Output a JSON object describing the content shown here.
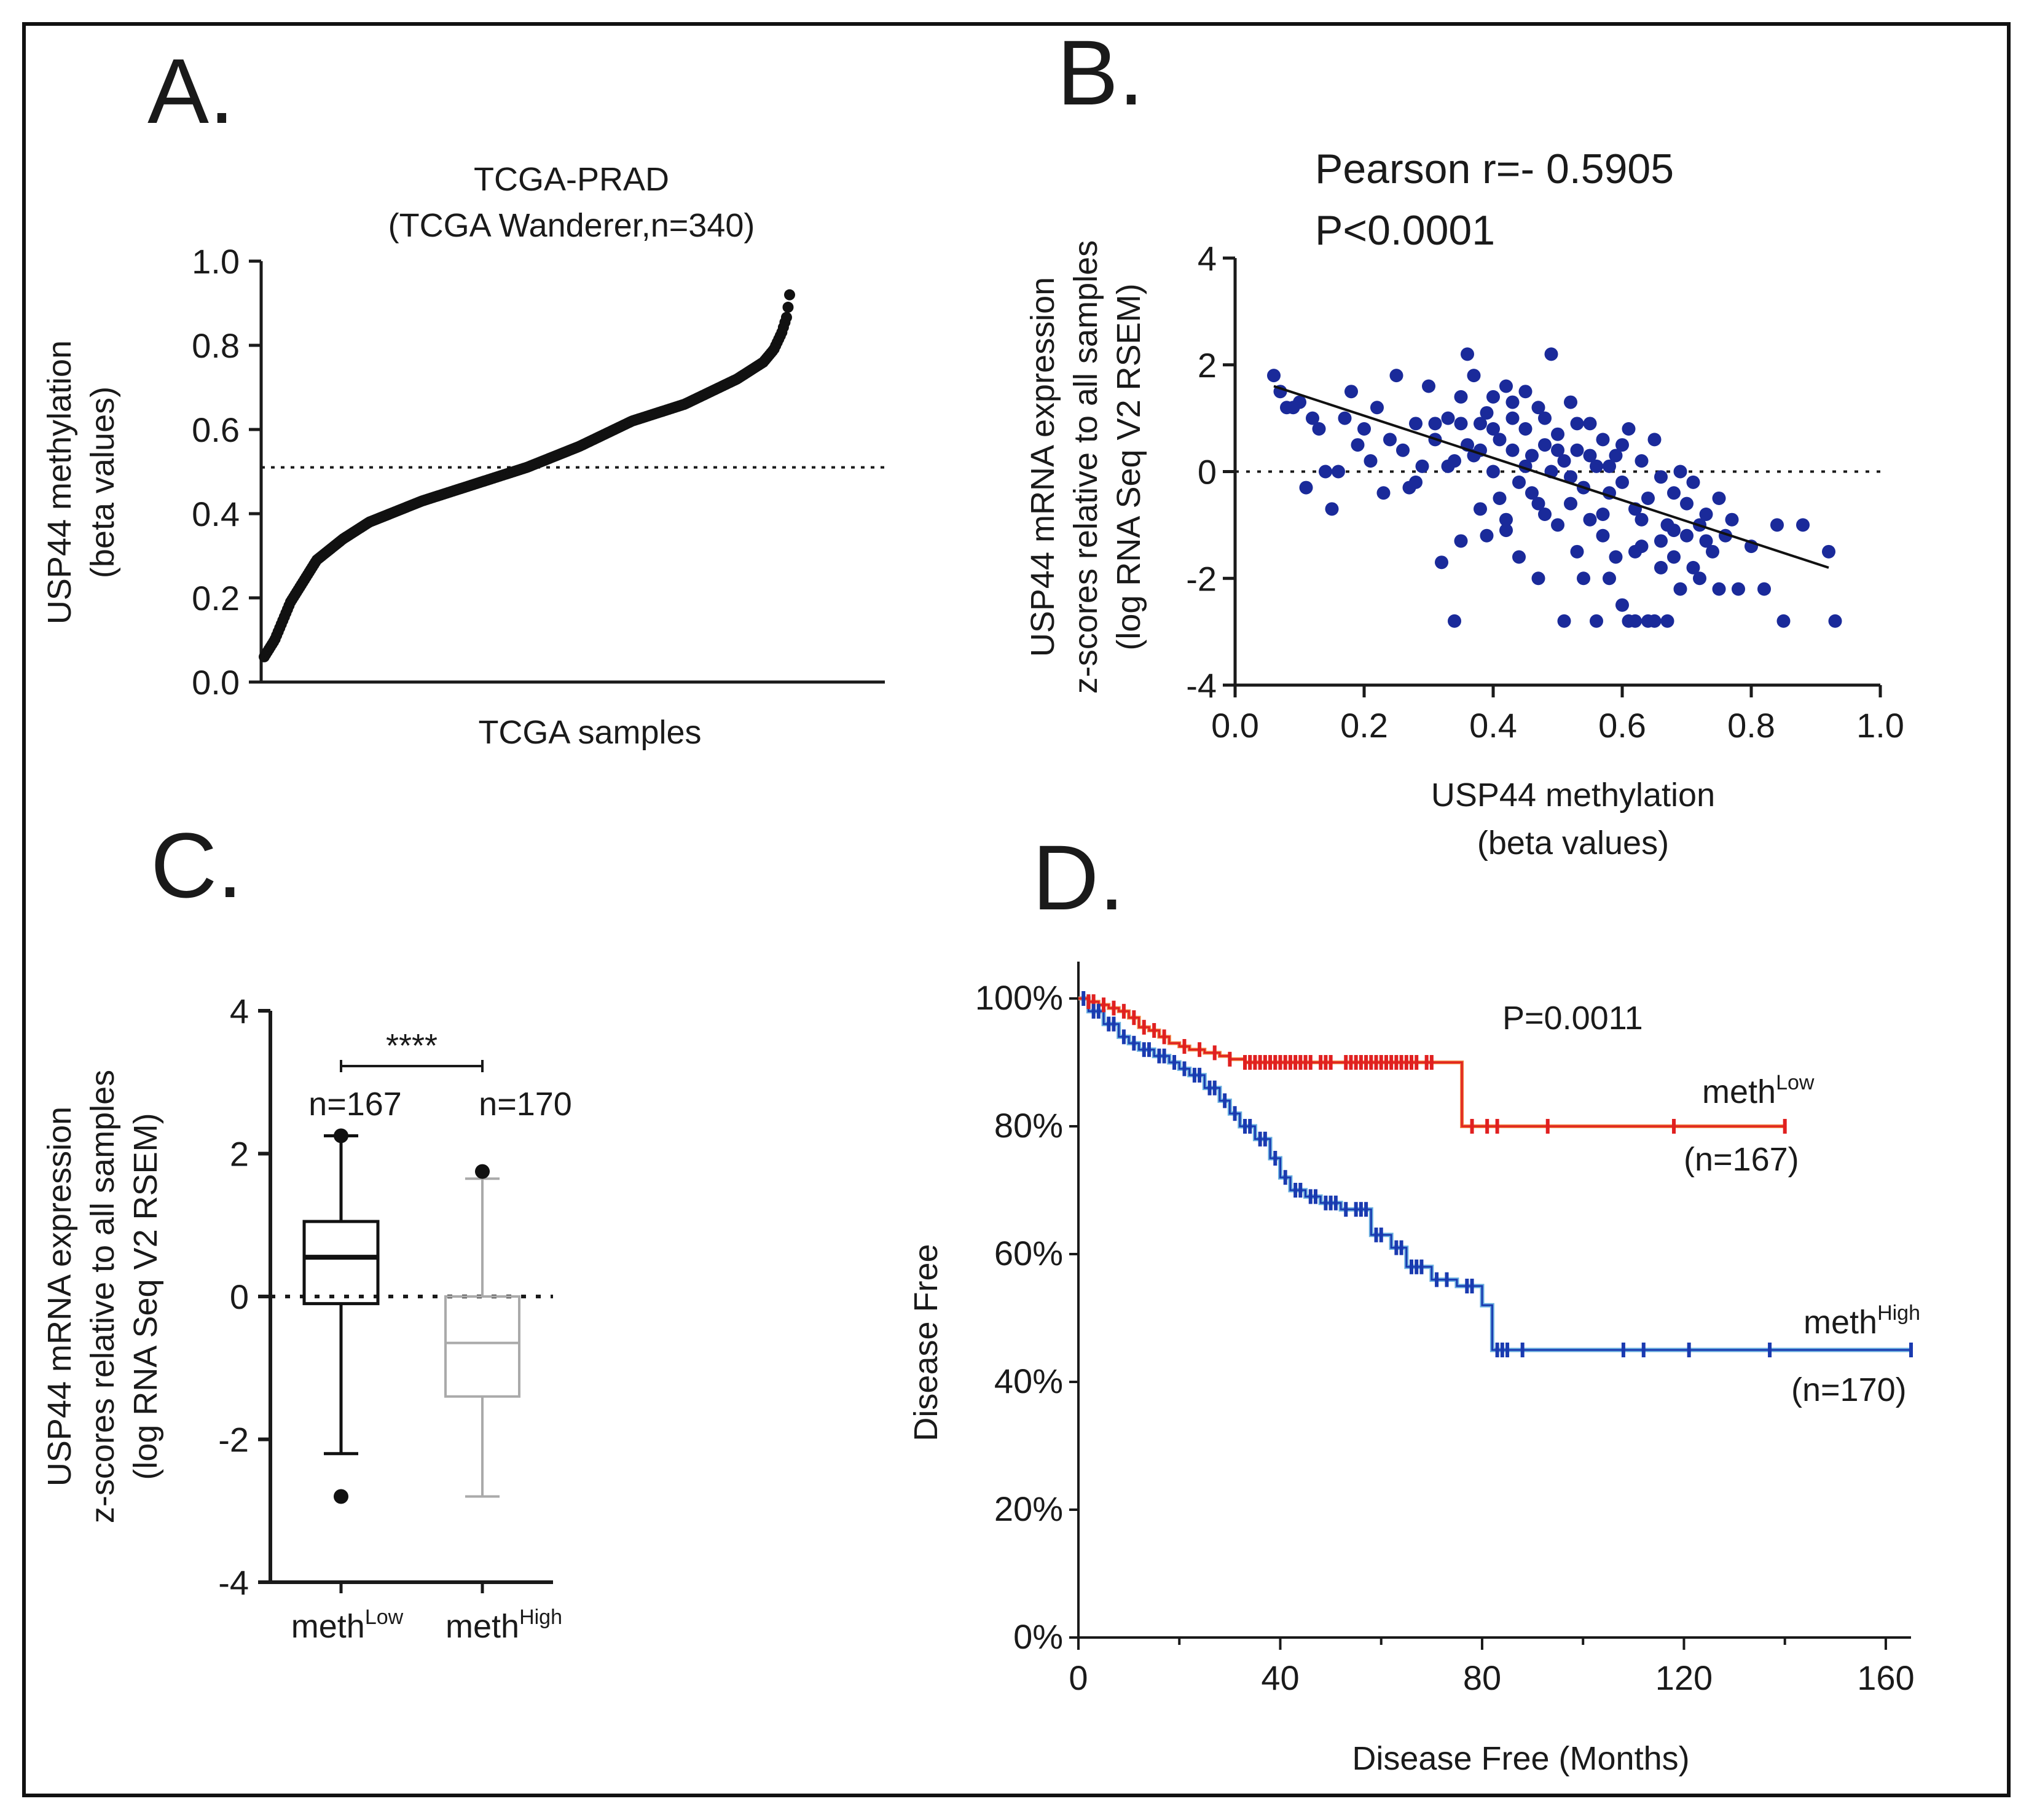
{
  "panel_letters": [
    "A.",
    "B.",
    "C.",
    "D."
  ],
  "colors": {
    "axis": "#1a1a1a",
    "scatter": "#1a2a9a",
    "km_low": "#e02020",
    "km_high": "#1a3ab0",
    "km_high_light": "#6ab0e0",
    "box_high": "#aaaaaa"
  },
  "chart_data": [
    {
      "type": "line",
      "panel": "A",
      "title": "TCGA-PRAD",
      "subtitle": "(TCGA Wanderer,n=340)",
      "xlabel": "TCGA samples",
      "ylabel": "USP44 methylation",
      "ylabel2": "(beta values)",
      "ylim": [
        0,
        1
      ],
      "yticks": [
        "0.0",
        "0.2",
        "0.4",
        "0.6",
        "0.8",
        "1.0"
      ],
      "reference_line": 0.51,
      "n_samples": 340,
      "curve_fraction": [
        0,
        0.02,
        0.05,
        0.1,
        0.15,
        0.2,
        0.3,
        0.4,
        0.5,
        0.6,
        0.7,
        0.8,
        0.9,
        0.95,
        0.97,
        0.985,
        0.995,
        1.0
      ],
      "curve_values": [
        0.06,
        0.1,
        0.19,
        0.29,
        0.34,
        0.38,
        0.43,
        0.47,
        0.51,
        0.56,
        0.62,
        0.66,
        0.72,
        0.76,
        0.79,
        0.83,
        0.87,
        0.92
      ]
    },
    {
      "type": "scatter",
      "panel": "B",
      "annotation_r": "Pearson r=- 0.5905",
      "annotation_p": "P<0.0001",
      "xlabel": "USP44 methylation",
      "xlabel2": "(beta values)",
      "ylabel": "USP44 mRNA expression",
      "ylabel2": "z-scores relative to all samples",
      "ylabel3": "(log RNA Seq V2 RSEM)",
      "xlim": [
        0,
        1
      ],
      "ylim": [
        -4,
        4
      ],
      "xticks": [
        "0.0",
        "0.2",
        "0.4",
        "0.6",
        "0.8",
        "1.0"
      ],
      "yticks": [
        "-4",
        "-2",
        "0",
        "2",
        "4"
      ],
      "reference_line": 0,
      "regression": {
        "x": [
          0.06,
          0.92
        ],
        "y": [
          1.6,
          -1.8
        ]
      },
      "points": [
        [
          0.06,
          1.8
        ],
        [
          0.07,
          1.5
        ],
        [
          0.08,
          1.2
        ],
        [
          0.09,
          1.2
        ],
        [
          0.1,
          1.3
        ],
        [
          0.11,
          -0.3
        ],
        [
          0.12,
          1.0
        ],
        [
          0.13,
          0.8
        ],
        [
          0.14,
          0.0
        ],
        [
          0.15,
          -0.7
        ],
        [
          0.16,
          0.0
        ],
        [
          0.17,
          1.0
        ],
        [
          0.18,
          1.5
        ],
        [
          0.19,
          0.5
        ],
        [
          0.2,
          0.8
        ],
        [
          0.21,
          0.2
        ],
        [
          0.22,
          1.2
        ],
        [
          0.23,
          -0.4
        ],
        [
          0.24,
          0.6
        ],
        [
          0.25,
          1.8
        ],
        [
          0.26,
          0.4
        ],
        [
          0.27,
          -0.3
        ],
        [
          0.28,
          0.9
        ],
        [
          0.29,
          0.1
        ],
        [
          0.3,
          1.6
        ],
        [
          0.31,
          0.6
        ],
        [
          0.32,
          -1.7
        ],
        [
          0.33,
          1.0
        ],
        [
          0.34,
          -2.8
        ],
        [
          0.34,
          0.2
        ],
        [
          0.35,
          1.4
        ],
        [
          0.35,
          -1.3
        ],
        [
          0.36,
          0.5
        ],
        [
          0.36,
          2.2
        ],
        [
          0.37,
          0.3
        ],
        [
          0.37,
          1.8
        ],
        [
          0.38,
          -0.7
        ],
        [
          0.38,
          0.9
        ],
        [
          0.39,
          1.1
        ],
        [
          0.39,
          -1.2
        ],
        [
          0.4,
          0.0
        ],
        [
          0.4,
          1.4
        ],
        [
          0.41,
          -0.5
        ],
        [
          0.41,
          0.6
        ],
        [
          0.42,
          1.6
        ],
        [
          0.42,
          -1.1
        ],
        [
          0.43,
          0.4
        ],
        [
          0.43,
          1.0
        ],
        [
          0.44,
          -0.2
        ],
        [
          0.44,
          -1.6
        ],
        [
          0.45,
          0.8
        ],
        [
          0.45,
          1.5
        ],
        [
          0.46,
          -0.4
        ],
        [
          0.46,
          0.3
        ],
        [
          0.47,
          1.2
        ],
        [
          0.47,
          -2.0
        ],
        [
          0.48,
          0.5
        ],
        [
          0.48,
          -0.8
        ],
        [
          0.49,
          2.2
        ],
        [
          0.49,
          0.0
        ],
        [
          0.5,
          -1.0
        ],
        [
          0.5,
          0.7
        ],
        [
          0.51,
          -2.8
        ],
        [
          0.51,
          0.2
        ],
        [
          0.52,
          -0.6
        ],
        [
          0.52,
          1.3
        ],
        [
          0.53,
          -1.5
        ],
        [
          0.53,
          0.4
        ],
        [
          0.54,
          -0.3
        ],
        [
          0.54,
          -2.0
        ],
        [
          0.55,
          0.9
        ],
        [
          0.55,
          -0.9
        ],
        [
          0.56,
          -2.8
        ],
        [
          0.56,
          0.1
        ],
        [
          0.57,
          -1.2
        ],
        [
          0.57,
          0.6
        ],
        [
          0.58,
          -2.0
        ],
        [
          0.58,
          -0.4
        ],
        [
          0.59,
          0.3
        ],
        [
          0.59,
          -1.6
        ],
        [
          0.6,
          -2.5
        ],
        [
          0.6,
          -0.2
        ],
        [
          0.61,
          -2.8
        ],
        [
          0.61,
          0.8
        ],
        [
          0.62,
          -0.7
        ],
        [
          0.62,
          -2.8
        ],
        [
          0.63,
          -1.4
        ],
        [
          0.63,
          0.2
        ],
        [
          0.64,
          -2.8
        ],
        [
          0.64,
          -0.5
        ],
        [
          0.65,
          0.6
        ],
        [
          0.65,
          -2.8
        ],
        [
          0.66,
          -1.8
        ],
        [
          0.66,
          -0.1
        ],
        [
          0.67,
          -1.0
        ],
        [
          0.67,
          -2.8
        ],
        [
          0.68,
          -0.4
        ],
        [
          0.68,
          -1.6
        ],
        [
          0.69,
          0.0
        ],
        [
          0.69,
          -2.2
        ],
        [
          0.7,
          -1.2
        ],
        [
          0.7,
          -0.6
        ],
        [
          0.71,
          -1.8
        ],
        [
          0.71,
          -0.2
        ],
        [
          0.72,
          -2.0
        ],
        [
          0.72,
          -1.0
        ],
        [
          0.73,
          -0.8
        ],
        [
          0.74,
          -1.5
        ],
        [
          0.75,
          -2.2
        ],
        [
          0.75,
          -0.5
        ],
        [
          0.76,
          -1.2
        ],
        [
          0.77,
          -0.9
        ],
        [
          0.78,
          -2.2
        ],
        [
          0.8,
          -1.4
        ],
        [
          0.82,
          -2.2
        ],
        [
          0.84,
          -1.0
        ],
        [
          0.85,
          -2.8
        ],
        [
          0.88,
          -1.0
        ],
        [
          0.92,
          -1.5
        ],
        [
          0.93,
          -2.8
        ],
        [
          0.28,
          -0.2
        ],
        [
          0.31,
          0.9
        ],
        [
          0.33,
          0.1
        ],
        [
          0.4,
          0.8
        ],
        [
          0.45,
          0.1
        ],
        [
          0.5,
          0.4
        ],
        [
          0.55,
          0.3
        ],
        [
          0.6,
          0.5
        ],
        [
          0.63,
          -0.9
        ],
        [
          0.66,
          -1.3
        ],
        [
          0.42,
          -0.9
        ],
        [
          0.47,
          -0.6
        ],
        [
          0.52,
          -0.1
        ],
        [
          0.57,
          -0.8
        ],
        [
          0.35,
          0.9
        ],
        [
          0.38,
          0.4
        ],
        [
          0.43,
          1.3
        ],
        [
          0.48,
          1.0
        ],
        [
          0.53,
          0.9
        ],
        [
          0.58,
          0.1
        ],
        [
          0.62,
          -1.5
        ],
        [
          0.68,
          -1.1
        ],
        [
          0.73,
          -1.3
        ]
      ]
    },
    {
      "type": "box",
      "panel": "C",
      "significance": "****",
      "ylabel": "USP44 mRNA expression",
      "ylabel2": "z-scores relative to all samples",
      "ylabel3": "(log RNA Seq V2 RSEM)",
      "ylim": [
        -4,
        4
      ],
      "yticks": [
        "-4",
        "-2",
        "0",
        "2",
        "4"
      ],
      "reference_line": 0,
      "groups": [
        {
          "label": "meth",
          "sup": "Low",
          "n_label": "n=167",
          "whisker_low": -2.2,
          "q1": -0.1,
          "median": 0.55,
          "q3": 1.05,
          "whisker_high": 2.25,
          "outliers": [
            2.25,
            -2.8
          ]
        },
        {
          "label": "meth",
          "sup": "High",
          "n_label": "n=170",
          "whisker_low": -2.8,
          "q1": -1.4,
          "median": -0.65,
          "q3": 0.0,
          "whisker_high": 1.65,
          "outliers": [
            1.75
          ]
        }
      ]
    },
    {
      "type": "line",
      "panel": "D",
      "annotation_p": "P=0.0011",
      "xlabel": "Disease Free (Months)",
      "ylabel": "Disease Free",
      "xlim": [
        0,
        165
      ],
      "ylim": [
        0,
        100
      ],
      "xticks": [
        "0",
        "40",
        "80",
        "120",
        "160"
      ],
      "yticks": [
        "0%",
        "20%",
        "40%",
        "60%",
        "80%",
        "100%"
      ],
      "series": [
        {
          "name": "meth",
          "sup": "Low",
          "n_label": "(n=167)",
          "x": [
            0,
            2,
            4,
            6,
            8,
            10,
            12,
            14,
            16,
            18,
            20,
            22,
            25,
            28,
            30,
            33,
            40,
            50,
            60,
            67,
            76,
            76,
            140
          ],
          "y": [
            100,
            99.5,
            99,
            98.5,
            98,
            97,
            95.5,
            95,
            94,
            93,
            92.5,
            92,
            91.5,
            91,
            90.5,
            90,
            90,
            90,
            90,
            90,
            90,
            80,
            80
          ],
          "censors": [
            2,
            3,
            5,
            7,
            9,
            11,
            13,
            15,
            17,
            21,
            24,
            27,
            30,
            33,
            34,
            35,
            36,
            37,
            38,
            39,
            40,
            41,
            42,
            43,
            44,
            45,
            46,
            48,
            49,
            50,
            53,
            54,
            55,
            56,
            57,
            58,
            59,
            60,
            61,
            62,
            63,
            64,
            65,
            66,
            67,
            69,
            70,
            78,
            81,
            83,
            93,
            118,
            140
          ]
        },
        {
          "name": "meth",
          "sup": "High",
          "n_label": "(n=170)",
          "x": [
            0,
            2,
            5,
            8,
            10,
            12,
            15,
            18,
            20,
            22,
            25,
            28,
            30,
            32,
            35,
            38,
            40,
            42,
            45,
            48,
            52,
            58,
            62,
            65,
            70,
            75,
            80,
            82,
            90,
            165
          ],
          "y": [
            100,
            98,
            96,
            94,
            93,
            92,
            91,
            90,
            89,
            88,
            86,
            84,
            82,
            80,
            78,
            75,
            72,
            70,
            69,
            68,
            67,
            63,
            61,
            58,
            56,
            55,
            52,
            45,
            45,
            45
          ],
          "censors": [
            1,
            3,
            4,
            6,
            7,
            9,
            11,
            13,
            14,
            16,
            17,
            19,
            21,
            23,
            24,
            26,
            27,
            29,
            31,
            33,
            34,
            36,
            37,
            39,
            41,
            43,
            44,
            46,
            47,
            49,
            50,
            51,
            53,
            55,
            56,
            57,
            59,
            60,
            63,
            64,
            66,
            67,
            68,
            71,
            73,
            77,
            78,
            83,
            84,
            85,
            88,
            108,
            112,
            121,
            137,
            165
          ]
        }
      ]
    }
  ]
}
